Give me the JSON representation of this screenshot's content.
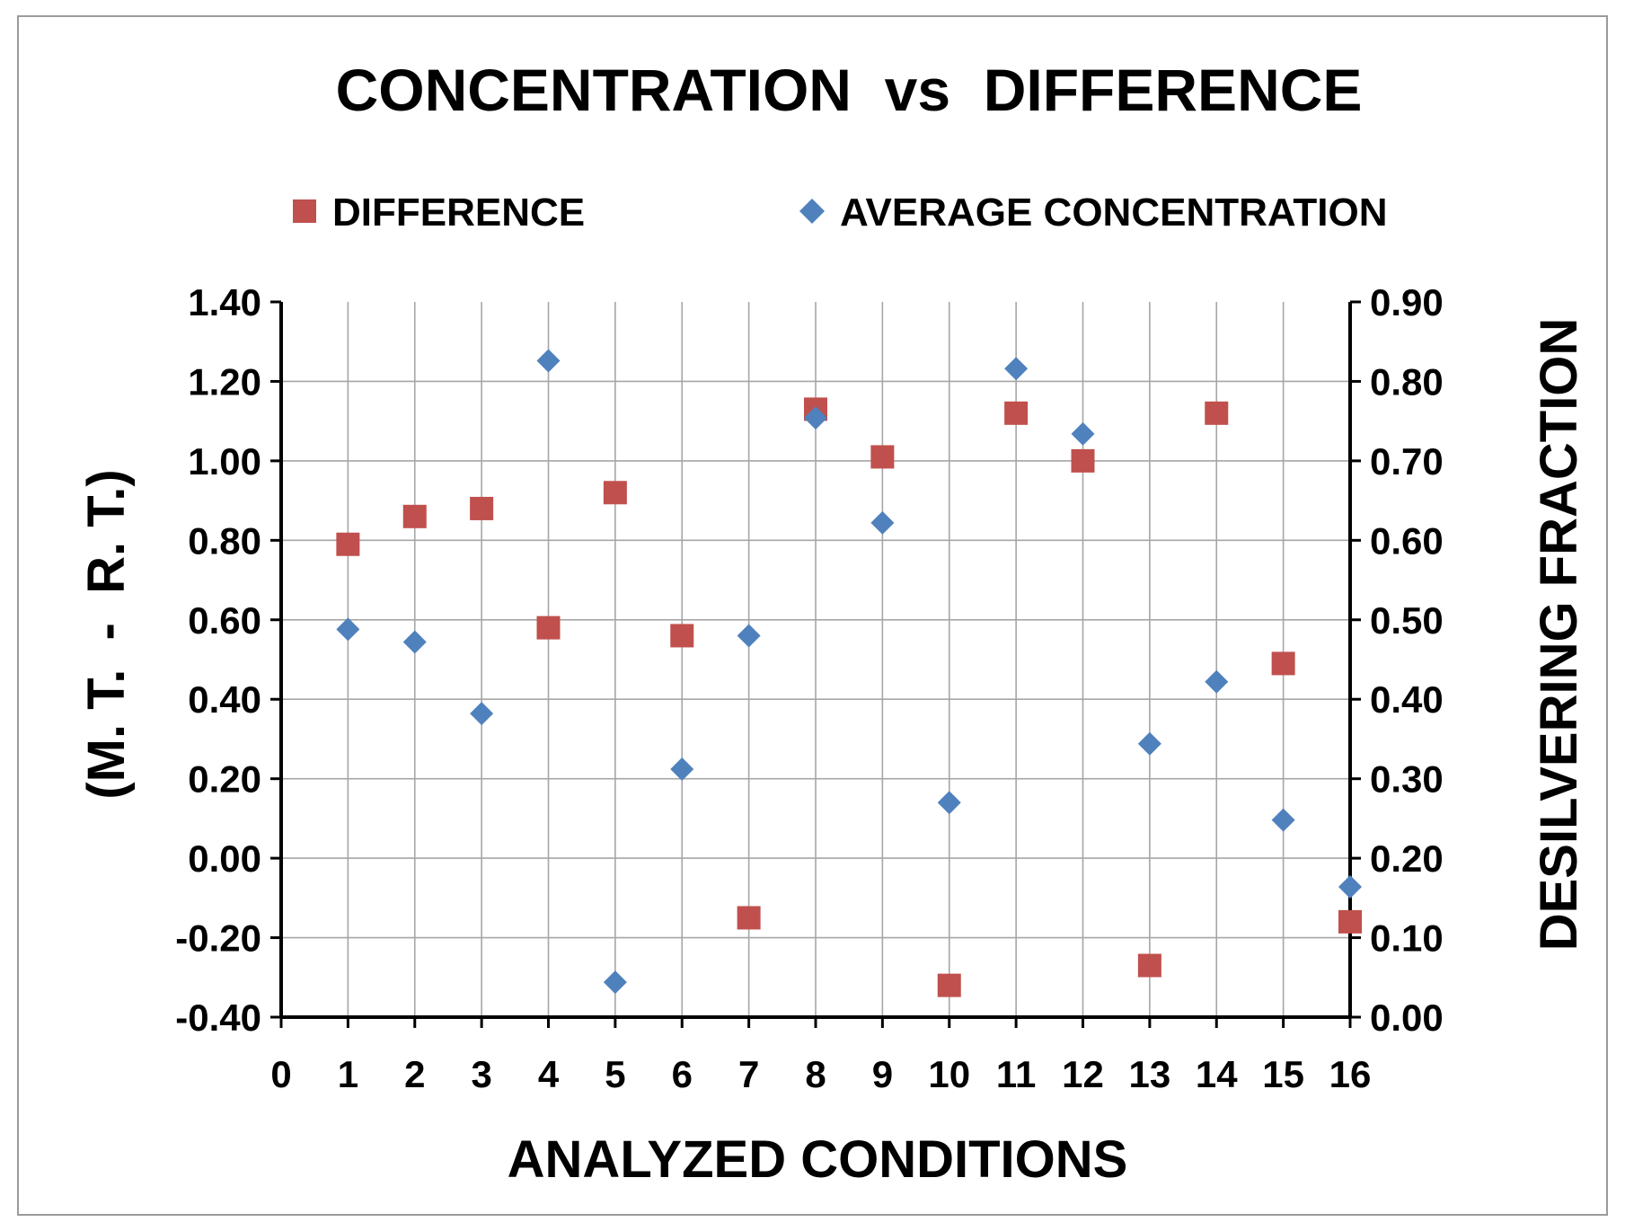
{
  "chart_data": {
    "type": "scatter",
    "title": "CONCENTRATION  vs  DIFFERENCE",
    "xlabel": "ANALYZED CONDITIONS",
    "ylabel_left": "(M. T.  -  R. T.)",
    "ylabel_right": "DESILVERING FRACTION",
    "xlim": [
      0,
      16
    ],
    "ylim_left": [
      -0.4,
      1.4
    ],
    "ylim_right": [
      0.0,
      0.9
    ],
    "x_ticks": [
      "0",
      "1",
      "2",
      "3",
      "4",
      "5",
      "6",
      "7",
      "8",
      "9",
      "10",
      "11",
      "12",
      "13",
      "14",
      "15",
      "16"
    ],
    "y_left_ticks": [
      "1.40",
      "1.20",
      "1.00",
      "0.80",
      "0.60",
      "0.40",
      "0.20",
      "0.00",
      "-0.20",
      "-0.40"
    ],
    "y_right_ticks": [
      "0.90",
      "0.80",
      "0.70",
      "0.60",
      "0.50",
      "0.40",
      "0.30",
      "0.20",
      "0.10",
      "0.00"
    ],
    "grid": true,
    "legend_position": "top",
    "series": [
      {
        "name": "DIFFERENCE",
        "axis": "left",
        "marker": "square",
        "color": "#c0504d",
        "x": [
          1,
          2,
          3,
          4,
          5,
          6,
          7,
          8,
          9,
          10,
          11,
          12,
          13,
          14,
          15,
          16
        ],
        "y": [
          0.79,
          0.86,
          0.88,
          0.58,
          0.92,
          0.56,
          -0.15,
          1.13,
          1.01,
          -0.32,
          1.12,
          1.0,
          -0.27,
          1.12,
          0.49,
          -0.16
        ]
      },
      {
        "name": "AVERAGE CONCENTRATION",
        "axis": "right",
        "marker": "diamond",
        "color": "#4f81bd",
        "x": [
          1,
          2,
          3,
          4,
          5,
          6,
          7,
          8,
          9,
          10,
          11,
          12,
          13,
          14,
          15,
          16
        ],
        "y": [
          0.488,
          0.472,
          0.382,
          0.826,
          0.044,
          0.312,
          0.48,
          0.754,
          0.622,
          0.27,
          0.816,
          0.734,
          0.344,
          0.422,
          0.248,
          0.164
        ]
      }
    ]
  }
}
